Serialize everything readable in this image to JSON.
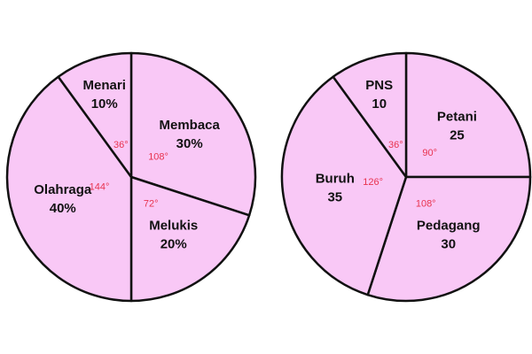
{
  "chart_data": [
    {
      "type": "pie",
      "color": "#f9c8f6",
      "categories": [
        "Membaca",
        "Melukis",
        "Olahraga",
        "Menari"
      ],
      "values": [
        30,
        20,
        40,
        10
      ],
      "value_labels": [
        "30%",
        "20%",
        "40%",
        "10%"
      ],
      "angle_labels": [
        "108°",
        "72°",
        "144°",
        "36°"
      ]
    },
    {
      "type": "pie",
      "color": "#f9c8f6",
      "categories": [
        "Petani",
        "Pedagang",
        "Buruh",
        "PNS"
      ],
      "values": [
        25,
        30,
        35,
        10
      ],
      "angle_labels": [
        "90°",
        "108°",
        "126°",
        "36°"
      ]
    }
  ]
}
